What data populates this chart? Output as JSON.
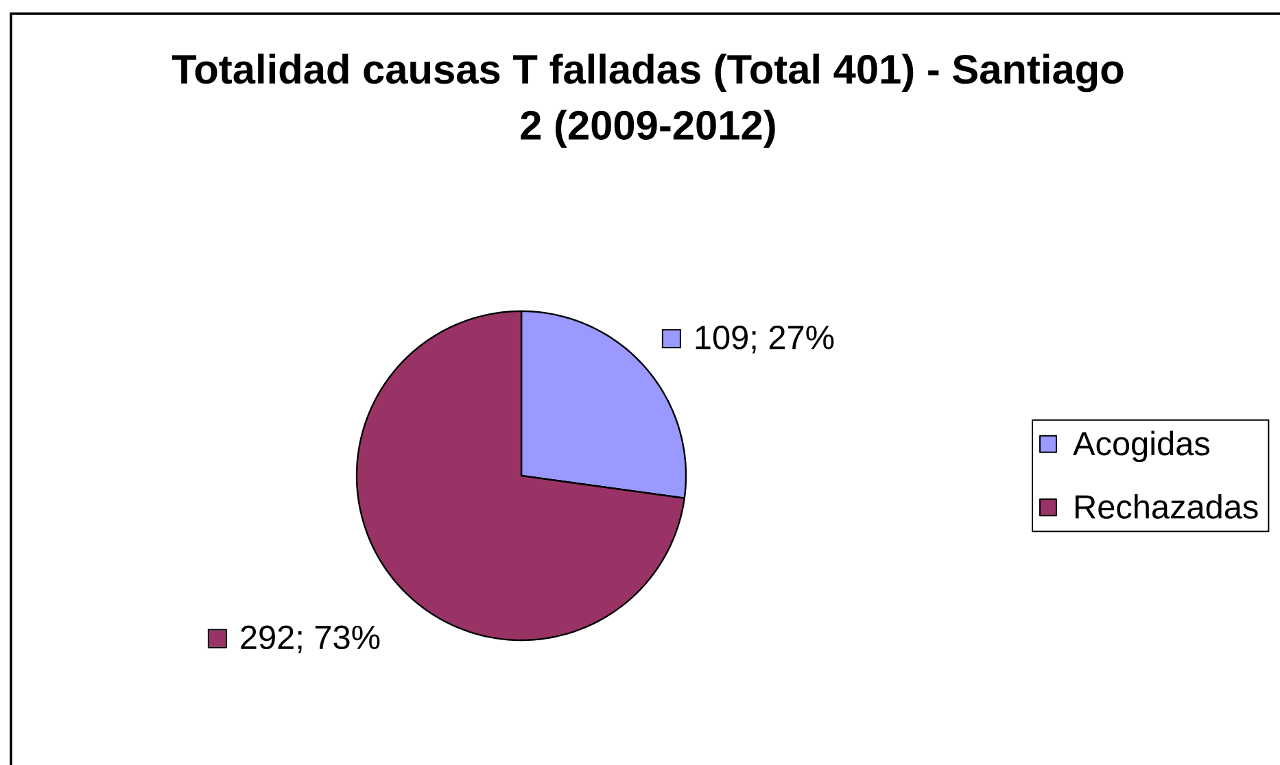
{
  "chart_data": {
    "type": "pie",
    "title": "Totalidad causas T falladas (Total 401) - Santiago 2 (2009-2012)",
    "categories": [
      "Acogidas",
      "Rechazadas"
    ],
    "values": [
      109,
      292
    ],
    "colors": [
      "#9999ff",
      "#993366"
    ],
    "value_labels": [
      "109; 27%",
      "292; 73%"
    ],
    "legend": "right"
  }
}
